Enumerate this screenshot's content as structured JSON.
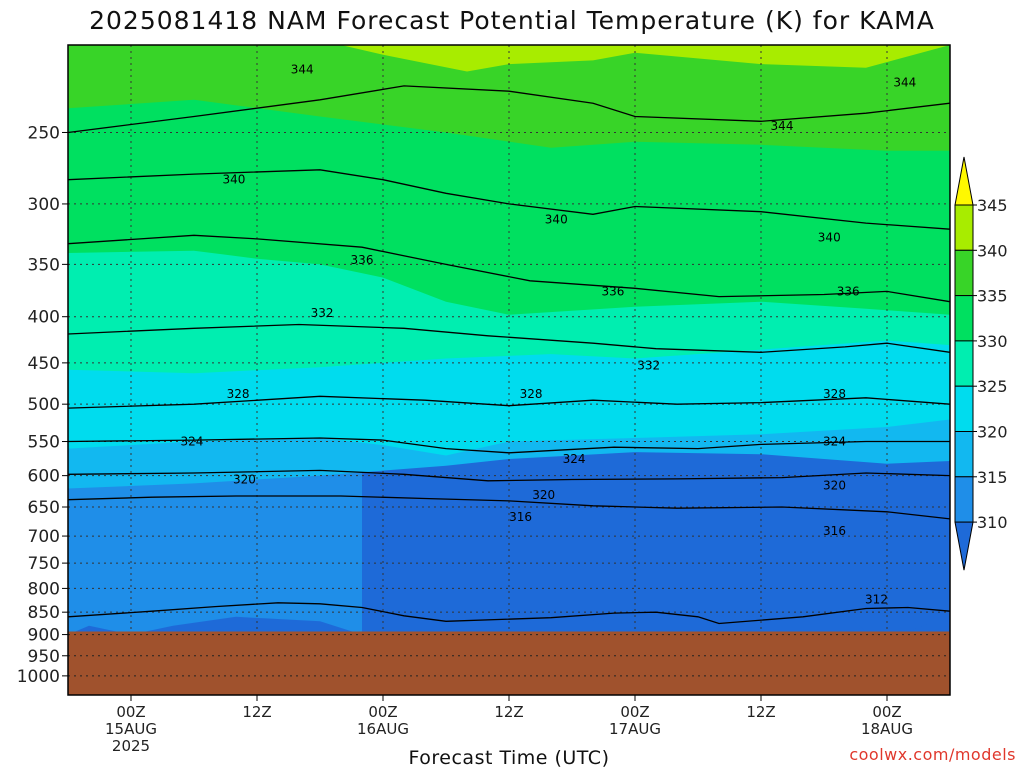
{
  "title": "2025081418 NAM Forecast Potential Temperature (K) for KAMA",
  "credit": "coolwx.com/models",
  "chart_data": {
    "type": "heatmap",
    "title": "2025081418 NAM Forecast Potential Temperature (K) for KAMA",
    "xlabel": "Forecast Time (UTC)",
    "ylabel": "",
    "x_ticks": [
      {
        "label": "00Z",
        "sub": [
          "15AUG",
          "2025"
        ]
      },
      {
        "label": "12Z",
        "sub": []
      },
      {
        "label": "00Z",
        "sub": [
          "16AUG"
        ]
      },
      {
        "label": "12Z",
        "sub": []
      },
      {
        "label": "00Z",
        "sub": [
          "17AUG"
        ]
      },
      {
        "label": "12Z",
        "sub": []
      },
      {
        "label": "00Z",
        "sub": [
          "18AUG"
        ]
      }
    ],
    "x_range_hours": [
      -6,
      78
    ],
    "y_ticks": [
      250,
      300,
      350,
      400,
      450,
      500,
      550,
      600,
      650,
      700,
      750,
      800,
      850,
      900,
      950,
      1000
    ],
    "y_range_hpa": [
      200,
      1050
    ],
    "y_scale": "log",
    "y_inverted": true,
    "grid": true,
    "ground_level_hpa": 893,
    "colorbar": {
      "labels": [
        310,
        315,
        320,
        325,
        330,
        335,
        340,
        345
      ],
      "colors": [
        "#1e6ad8",
        "#1f8ee8",
        "#12b8f0",
        "#00dcee",
        "#00eeb0",
        "#00e060",
        "#38d428",
        "#a8ec00",
        "#fff800"
      ]
    },
    "fill_layers": [
      {
        "level": 315,
        "color": "#1f8ee8",
        "profile": [
          [
            -6,
            900
          ],
          [
            -4,
            880
          ],
          [
            0,
            900
          ],
          [
            4,
            880
          ],
          [
            10,
            860
          ],
          [
            18,
            870
          ],
          [
            22,
            900
          ]
        ]
      },
      {
        "level": 320,
        "color": "#12b8f0",
        "profile": [
          [
            -6,
            620
          ],
          [
            6,
            612
          ],
          [
            18,
            600
          ],
          [
            30,
            585
          ],
          [
            36,
            575
          ],
          [
            48,
            565
          ],
          [
            60,
            568
          ],
          [
            66,
            575
          ],
          [
            72,
            582
          ],
          [
            78,
            578
          ]
        ]
      },
      {
        "level": 325,
        "color": "#00dcee",
        "profile": [
          [
            -6,
            560
          ],
          [
            6,
            550
          ],
          [
            18,
            545
          ],
          [
            24,
            555
          ],
          [
            30,
            570
          ],
          [
            36,
            550
          ],
          [
            48,
            545
          ],
          [
            60,
            540
          ],
          [
            72,
            530
          ],
          [
            78,
            520
          ]
        ]
      },
      {
        "level": 330,
        "color": "#00eeb0",
        "profile": [
          [
            -6,
            458
          ],
          [
            6,
            462
          ],
          [
            18,
            455
          ],
          [
            30,
            445
          ],
          [
            40,
            440
          ],
          [
            48,
            445
          ],
          [
            60,
            435
          ],
          [
            72,
            425
          ],
          [
            78,
            430
          ]
        ]
      },
      {
        "level": 335,
        "color": "#00e060",
        "profile": [
          [
            -6,
            340
          ],
          [
            6,
            338
          ],
          [
            12,
            345
          ],
          [
            18,
            350
          ],
          [
            24,
            362
          ],
          [
            30,
            385
          ],
          [
            36,
            398
          ],
          [
            48,
            390
          ],
          [
            60,
            385
          ],
          [
            70,
            392
          ],
          [
            78,
            398
          ]
        ]
      },
      {
        "level": 340,
        "color": "#38d428",
        "profile": [
          [
            -6,
            235
          ],
          [
            6,
            230
          ],
          [
            18,
            240
          ],
          [
            30,
            250
          ],
          [
            40,
            260
          ],
          [
            48,
            256
          ],
          [
            60,
            258
          ],
          [
            72,
            262
          ],
          [
            78,
            262
          ]
        ]
      },
      {
        "level": 345,
        "color": "#a8ec00",
        "profile": [
          [
            -6,
            200
          ],
          [
            20,
            200
          ],
          [
            24,
            205
          ],
          [
            32,
            214
          ],
          [
            36,
            210
          ],
          [
            44,
            208
          ],
          [
            48,
            204
          ],
          [
            60,
            210
          ],
          [
            70,
            212
          ],
          [
            78,
            200
          ]
        ]
      }
    ],
    "contours": [
      {
        "value": 344,
        "profile": [
          [
            -6,
            250
          ],
          [
            6,
            240
          ],
          [
            18,
            230
          ],
          [
            26,
            222
          ],
          [
            36,
            225
          ],
          [
            44,
            232
          ],
          [
            48,
            240
          ],
          [
            60,
            243
          ],
          [
            70,
            238
          ],
          [
            78,
            232
          ]
        ]
      },
      {
        "value": 340,
        "profile": [
          [
            -6,
            282
          ],
          [
            6,
            278
          ],
          [
            18,
            275
          ],
          [
            24,
            282
          ],
          [
            30,
            292
          ],
          [
            36,
            300
          ],
          [
            44,
            308
          ],
          [
            48,
            302
          ],
          [
            60,
            306
          ],
          [
            70,
            315
          ],
          [
            78,
            320
          ]
        ]
      },
      {
        "value": 336,
        "profile": [
          [
            -6,
            332
          ],
          [
            6,
            325
          ],
          [
            12,
            328
          ],
          [
            22,
            335
          ],
          [
            30,
            350
          ],
          [
            38,
            365
          ],
          [
            48,
            372
          ],
          [
            56,
            380
          ],
          [
            66,
            378
          ],
          [
            72,
            375
          ],
          [
            78,
            385
          ]
        ]
      },
      {
        "value": 332,
        "profile": [
          [
            -6,
            418
          ],
          [
            6,
            412
          ],
          [
            16,
            408
          ],
          [
            26,
            412
          ],
          [
            34,
            420
          ],
          [
            44,
            428
          ],
          [
            50,
            434
          ],
          [
            60,
            438
          ],
          [
            68,
            432
          ],
          [
            72,
            428
          ],
          [
            78,
            438
          ]
        ]
      },
      {
        "value": 328,
        "profile": [
          [
            -6,
            505
          ],
          [
            6,
            500
          ],
          [
            18,
            490
          ],
          [
            28,
            495
          ],
          [
            36,
            502
          ],
          [
            44,
            495
          ],
          [
            52,
            500
          ],
          [
            60,
            498
          ],
          [
            70,
            492
          ],
          [
            78,
            500
          ]
        ]
      },
      {
        "value": 324,
        "profile": [
          [
            -6,
            550
          ],
          [
            6,
            548
          ],
          [
            18,
            545
          ],
          [
            24,
            548
          ],
          [
            30,
            560
          ],
          [
            36,
            566
          ],
          [
            46,
            558
          ],
          [
            54,
            560
          ],
          [
            60,
            554
          ],
          [
            70,
            550
          ],
          [
            78,
            550
          ]
        ]
      },
      {
        "value": 320,
        "profile": [
          [
            -6,
            598
          ],
          [
            6,
            596
          ],
          [
            18,
            592
          ],
          [
            26,
            598
          ],
          [
            34,
            608
          ],
          [
            42,
            606
          ],
          [
            52,
            605
          ],
          [
            62,
            603
          ],
          [
            70,
            596
          ],
          [
            78,
            600
          ]
        ]
      },
      {
        "value": 316,
        "profile": [
          [
            -6,
            638
          ],
          [
            2,
            634
          ],
          [
            10,
            632
          ],
          [
            20,
            632
          ],
          [
            28,
            636
          ],
          [
            36,
            640
          ],
          [
            44,
            648
          ],
          [
            52,
            652
          ],
          [
            62,
            650
          ],
          [
            72,
            658
          ],
          [
            78,
            670
          ]
        ]
      },
      {
        "value": 312,
        "profile": [
          [
            -6,
            860
          ],
          [
            2,
            848
          ],
          [
            8,
            838
          ],
          [
            14,
            830
          ],
          [
            18,
            832
          ],
          [
            22,
            840
          ],
          [
            26,
            858
          ],
          [
            30,
            870
          ],
          [
            40,
            862
          ],
          [
            46,
            852
          ],
          [
            50,
            850
          ],
          [
            54,
            860
          ],
          [
            56,
            875
          ],
          [
            64,
            860
          ],
          [
            70,
            842
          ],
          [
            74,
            840
          ],
          [
            78,
            848
          ]
        ]
      }
    ],
    "contour_labels": [
      {
        "value": "344",
        "x": 16.3,
        "p": 213
      },
      {
        "value": "344",
        "x": 62.0,
        "p": 246
      },
      {
        "value": "344",
        "x": 73.7,
        "p": 220
      },
      {
        "value": "340",
        "x": 9.8,
        "p": 282
      },
      {
        "value": "340",
        "x": 40.5,
        "p": 312
      },
      {
        "value": "340",
        "x": 66.5,
        "p": 327
      },
      {
        "value": "336",
        "x": 22.0,
        "p": 346
      },
      {
        "value": "336",
        "x": 45.9,
        "p": 375
      },
      {
        "value": "336",
        "x": 68.3,
        "p": 375
      },
      {
        "value": "332",
        "x": 18.2,
        "p": 396
      },
      {
        "value": "332",
        "x": 49.3,
        "p": 453
      },
      {
        "value": "328",
        "x": 10.2,
        "p": 487
      },
      {
        "value": "328",
        "x": 38.1,
        "p": 487
      },
      {
        "value": "328",
        "x": 67.0,
        "p": 487
      },
      {
        "value": "324",
        "x": 5.8,
        "p": 550
      },
      {
        "value": "324",
        "x": 42.2,
        "p": 575
      },
      {
        "value": "324",
        "x": 67.0,
        "p": 550
      },
      {
        "value": "320",
        "x": 10.8,
        "p": 606
      },
      {
        "value": "320",
        "x": 39.3,
        "p": 630
      },
      {
        "value": "320",
        "x": 67.0,
        "p": 615
      },
      {
        "value": "316",
        "x": 37.1,
        "p": 667
      },
      {
        "value": "316",
        "x": 67.0,
        "p": 691
      },
      {
        "value": "312",
        "x": 71.0,
        "p": 823
      }
    ],
    "cold_pockets": [
      {
        "color": "#1e6ad8",
        "profile": [
          [
            6,
            893
          ],
          [
            10,
            878
          ],
          [
            14,
            872
          ],
          [
            18,
            876
          ],
          [
            20,
            893
          ]
        ]
      },
      {
        "color": "#1e6ad8",
        "profile": [
          [
            30,
            893
          ],
          [
            36,
            880
          ],
          [
            40,
            866
          ],
          [
            44,
            868
          ],
          [
            46,
            893
          ]
        ]
      },
      {
        "color": "#1e6ad8",
        "profile": [
          [
            54,
            893
          ],
          [
            60,
            870
          ],
          [
            64,
            860
          ],
          [
            68,
            852
          ],
          [
            70,
            893
          ]
        ]
      },
      {
        "color": "#1e6ad8",
        "profile": [
          [
            74,
            893
          ],
          [
            76,
            875
          ],
          [
            78,
            875
          ],
          [
            78,
            893
          ]
        ]
      }
    ],
    "ground_color": "#a0522d"
  }
}
